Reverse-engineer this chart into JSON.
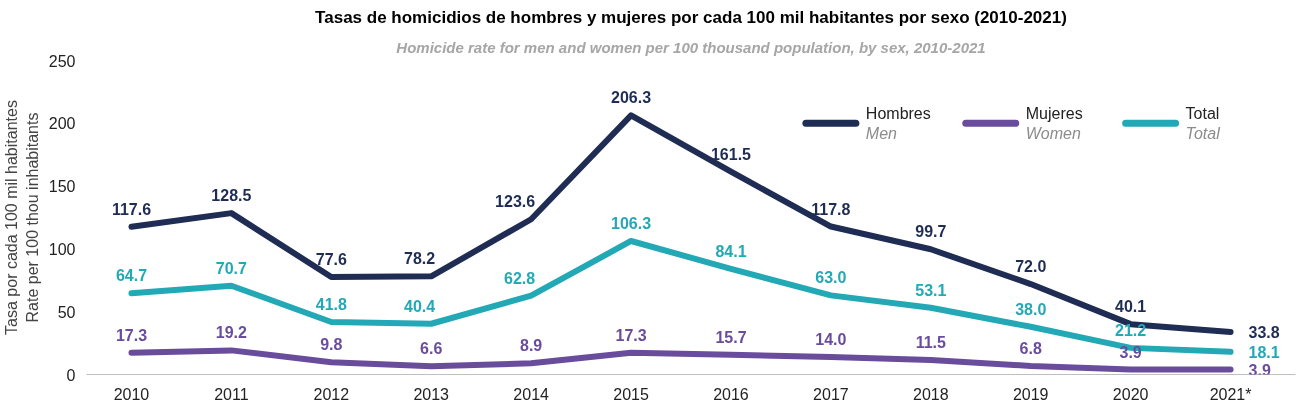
{
  "chart_data": {
    "type": "line",
    "title": "Tasas de homicidios de hombres y mujeres por cada 100 mil habitantes por sexo (2010-2021)",
    "subtitle": "Homicide rate for men and women per 100 thousand population, by sex, 2010-2021",
    "ylabel": "Tasa por cada 100 mil habitantes\nRate per 100 thou inhabitants",
    "categories": [
      "2010",
      "2011",
      "2012",
      "2013",
      "2014",
      "2015",
      "2016",
      "2017",
      "2018",
      "2019",
      "2020",
      "2021*"
    ],
    "series": [
      {
        "name": "Hombres\nMen",
        "color": "#1f2d54",
        "values": [
          117.6,
          128.5,
          77.6,
          78.2,
          123.6,
          206.3,
          161.5,
          117.8,
          99.7,
          72.0,
          40.1,
          33.8
        ],
        "value_labels": [
          "117.6",
          "128.5",
          "77.6",
          "78.2",
          "123.6",
          "206.3",
          "161.5",
          "117.8",
          "99.7",
          "72.0",
          "40.1",
          "33.8"
        ]
      },
      {
        "name": "Mujeres\nWomen",
        "color": "#6a4c9c",
        "values": [
          17.3,
          19.2,
          9.8,
          6.6,
          8.9,
          17.3,
          15.7,
          14.0,
          11.5,
          6.8,
          3.9,
          3.9
        ],
        "value_labels": [
          "17.3",
          "19.2",
          "9.8",
          "6.6",
          "8.9",
          "17.3",
          "15.7",
          "14.0",
          "11.5",
          "6.8",
          "3.9",
          "3.9"
        ]
      },
      {
        "name": "Total\nTotal",
        "color": "#22a9b5",
        "values": [
          64.7,
          70.7,
          41.8,
          40.4,
          62.8,
          106.3,
          84.1,
          63.0,
          53.1,
          38.0,
          21.2,
          18.1
        ],
        "value_labels": [
          "64.7",
          "70.7",
          "41.8",
          "40.4",
          "62.8",
          "106.3",
          "84.1",
          "63.0",
          "53.1",
          "38.0",
          "21.2",
          "18.1"
        ]
      }
    ],
    "ylim": [
      0,
      250
    ],
    "yticks": [
      0,
      50,
      100,
      150,
      200,
      250
    ],
    "grid": false,
    "legend": "top right",
    "marker": "none",
    "line_style": "solid"
  }
}
